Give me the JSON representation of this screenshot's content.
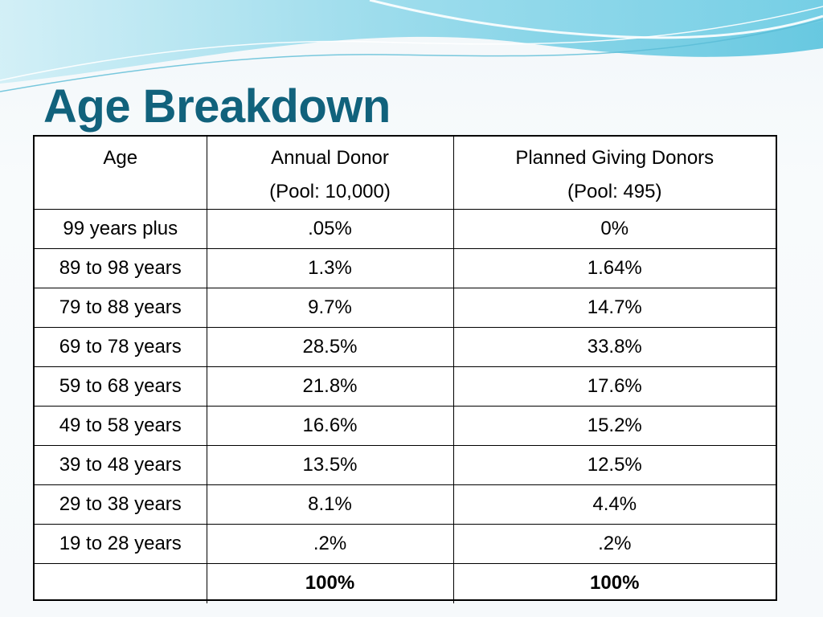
{
  "slide": {
    "title": "Age Breakdown"
  },
  "table": {
    "headers": [
      {
        "line1": "Age",
        "line2": ""
      },
      {
        "line1": "Annual Donor",
        "line2": "(Pool: 10,000)"
      },
      {
        "line1": "Planned Giving Donors",
        "line2": "(Pool: 495)"
      }
    ],
    "rows": [
      [
        "99 years plus",
        ".05%",
        "0%"
      ],
      [
        "89 to 98 years",
        "1.3%",
        "1.64%"
      ],
      [
        "79 to 88 years",
        "9.7%",
        "14.7%"
      ],
      [
        "69 to 78 years",
        "28.5%",
        "33.8%"
      ],
      [
        "59 to 68 years",
        "21.8%",
        "17.6%"
      ],
      [
        "49 to 58 years",
        "16.6%",
        "15.2%"
      ],
      [
        "39 to 48 years",
        "13.5%",
        "12.5%"
      ],
      [
        "29 to 38 years",
        "8.1%",
        "4.4%"
      ],
      [
        "19 to 28 years",
        ".2%",
        ".2%"
      ]
    ],
    "total": [
      "",
      "100%",
      "100%"
    ]
  },
  "colors": {
    "title": "#11627c",
    "wave_dark": "#5fc3dc",
    "wave_light": "#bfe6f1"
  }
}
